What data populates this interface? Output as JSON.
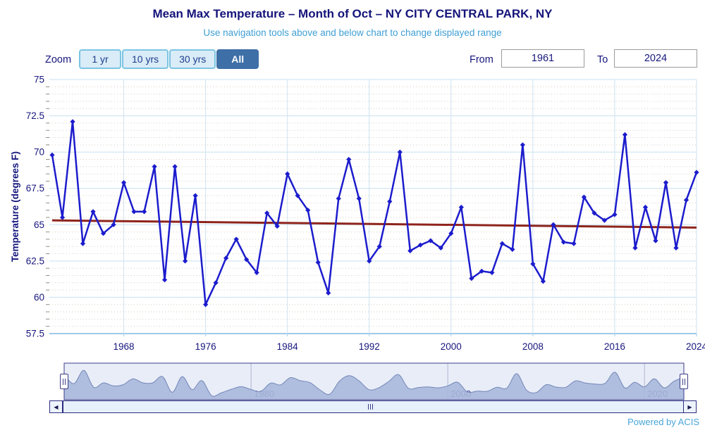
{
  "header": {
    "title": "Mean Max Temperature – Month of Oct – NY CITY CENTRAL PARK, NY",
    "subtitle": "Use navigation tools above and below chart to change displayed range"
  },
  "controls": {
    "zoom_label": "Zoom",
    "zoom_buttons": [
      {
        "label": "1 yr",
        "selected": false
      },
      {
        "label": "10 yrs",
        "selected": false
      },
      {
        "label": "30 yrs",
        "selected": false
      },
      {
        "label": "All",
        "selected": true
      }
    ],
    "from_label": "From",
    "from_value": "1961",
    "to_label": "To",
    "to_value": "2024"
  },
  "chart_data": {
    "type": "line",
    "title": "Mean Max Temperature – Month of Oct – NY CITY CENTRAL PARK, NY",
    "xlabel": "",
    "ylabel": "Temperature (degrees F)",
    "ylim": [
      57.5,
      75
    ],
    "y_major_step": 2.5,
    "y_minor_step": 0.5,
    "x_ticks": [
      1968,
      1976,
      1984,
      1992,
      2000,
      2008,
      2016,
      2024
    ],
    "grid": true,
    "x": [
      1961,
      1962,
      1963,
      1964,
      1965,
      1966,
      1967,
      1968,
      1969,
      1970,
      1971,
      1972,
      1973,
      1974,
      1975,
      1976,
      1977,
      1978,
      1979,
      1980,
      1981,
      1982,
      1983,
      1984,
      1985,
      1986,
      1987,
      1988,
      1989,
      1990,
      1991,
      1992,
      1993,
      1994,
      1995,
      1996,
      1997,
      1998,
      1999,
      2000,
      2001,
      2002,
      2003,
      2004,
      2005,
      2006,
      2007,
      2008,
      2009,
      2010,
      2011,
      2012,
      2013,
      2014,
      2015,
      2016,
      2017,
      2018,
      2019,
      2020,
      2021,
      2022,
      2023,
      2024
    ],
    "series": [
      {
        "name": "Mean Max Temperature",
        "color": "#1c1ccd",
        "values": [
          69.8,
          65.5,
          72.1,
          63.7,
          65.9,
          64.4,
          65.0,
          67.9,
          65.9,
          65.9,
          69.0,
          61.2,
          69.0,
          62.5,
          67.0,
          59.5,
          61.0,
          62.7,
          64.0,
          62.6,
          61.7,
          65.8,
          64.9,
          68.5,
          67.0,
          66.0,
          62.4,
          60.3,
          66.8,
          69.5,
          66.8,
          62.5,
          63.5,
          66.6,
          70.0,
          63.2,
          63.6,
          63.9,
          63.4,
          64.4,
          66.2,
          61.3,
          61.8,
          61.7,
          63.7,
          63.3,
          70.5,
          62.3,
          61.1,
          65.0,
          63.8,
          63.7,
          66.9,
          65.8,
          65.3,
          65.7,
          71.2,
          63.4,
          66.2,
          63.9,
          67.9,
          63.4,
          66.7,
          68.6
        ]
      },
      {
        "name": "Trend",
        "color": "#8e241c",
        "trend_endpoints": [
          65.3,
          64.8
        ]
      }
    ]
  },
  "navigator": {
    "x_ticks": [
      1980,
      2000,
      2020
    ],
    "range": [
      1961,
      2024
    ]
  },
  "footer": {
    "powered_by": "Powered by ACIS"
  }
}
